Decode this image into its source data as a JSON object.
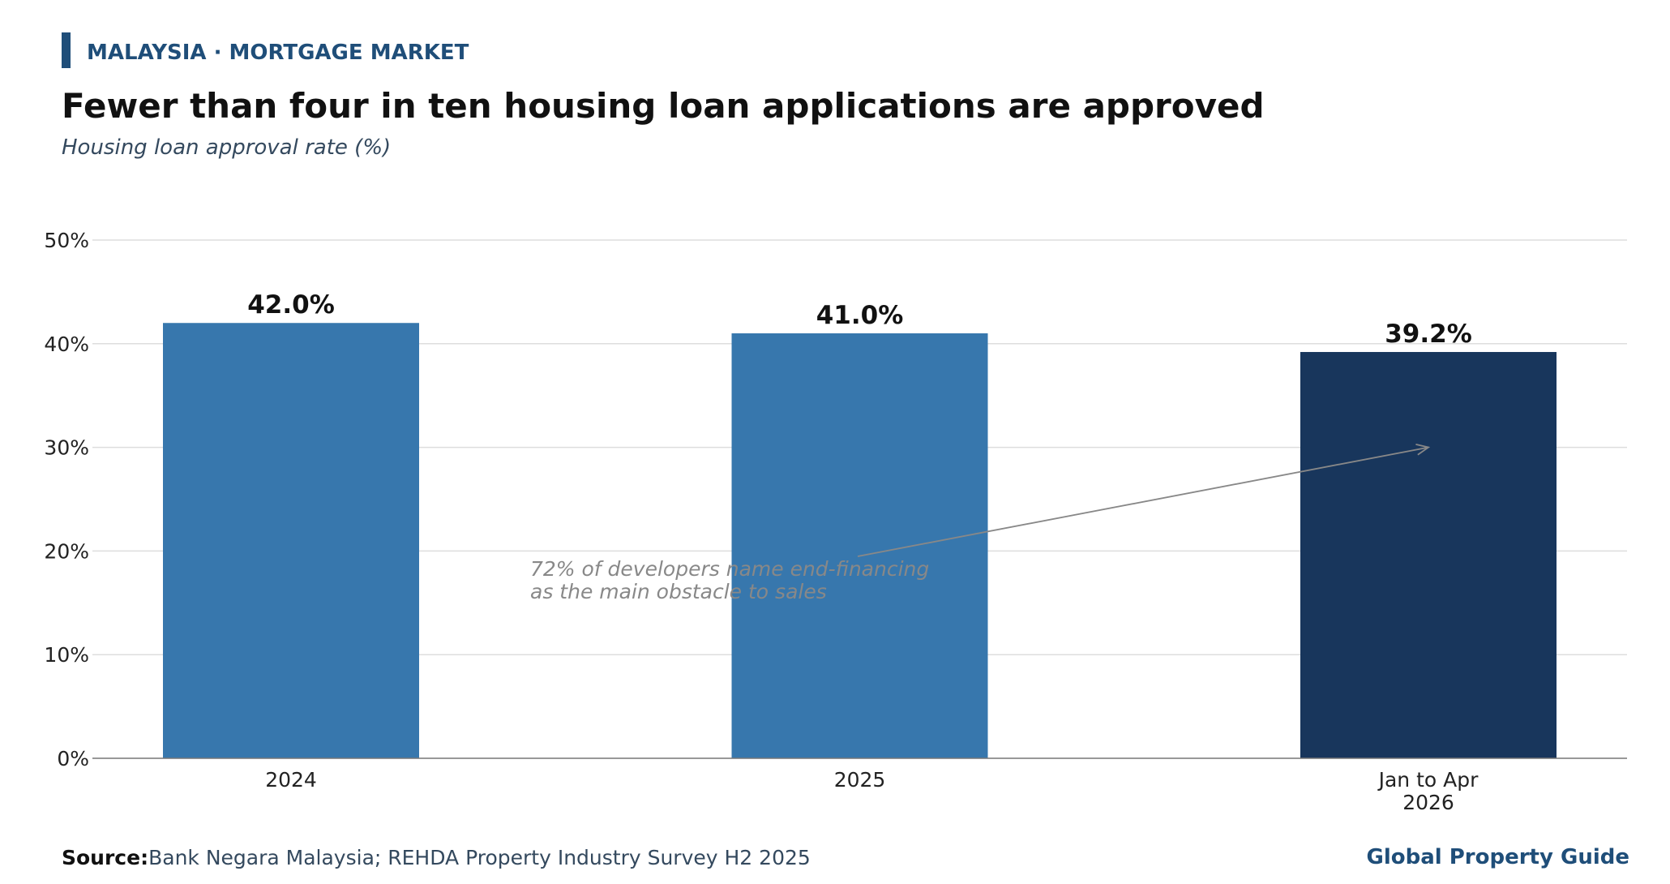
{
  "header": {
    "kicker": "MALAYSIA · MORTGAGE MARKET",
    "title": "Fewer than four in ten housing loan applications are approved",
    "subtitle": "Housing loan approval rate (%)"
  },
  "chart_data": {
    "type": "bar",
    "categories": [
      "2024",
      "2025",
      "Jan to Apr 2026"
    ],
    "category_lines": [
      [
        "2024"
      ],
      [
        "2025"
      ],
      [
        "Jan to Apr",
        "2026"
      ]
    ],
    "values": [
      42.0,
      41.0,
      39.2
    ],
    "value_labels": [
      "42.0%",
      "41.0%",
      "39.2%"
    ],
    "bar_colors": [
      "#3777ad",
      "#3777ad",
      "#18365c"
    ],
    "title": "Fewer than four in ten housing loan applications are approved",
    "subtitle": "Housing loan approval rate (%)",
    "xlabel": "",
    "ylabel": "",
    "ylim": [
      0,
      50
    ],
    "yticks": [
      0,
      10,
      20,
      30,
      40,
      50
    ],
    "ytick_labels": [
      "0%",
      "10%",
      "20%",
      "30%",
      "40%",
      "50%"
    ],
    "grid": true,
    "legend": "none",
    "annotation": {
      "lines": [
        "72% of developers name end-financing",
        "as the main obstacle to sales"
      ],
      "text_anchor_category": "2025",
      "arrow_target_category": "Jan to Apr 2026",
      "arrow_target_value": 30
    }
  },
  "footer": {
    "source_label": "Source:",
    "source_text": "Bank Negara Malaysia; REHDA Property Industry Survey H2 2025",
    "brand": "Global Property Guide"
  },
  "colors": {
    "accent": "#1f4e79",
    "bar_primary": "#3777ad",
    "bar_highlight": "#18365c",
    "grid": "#dddddd",
    "annotation": "#888888"
  }
}
